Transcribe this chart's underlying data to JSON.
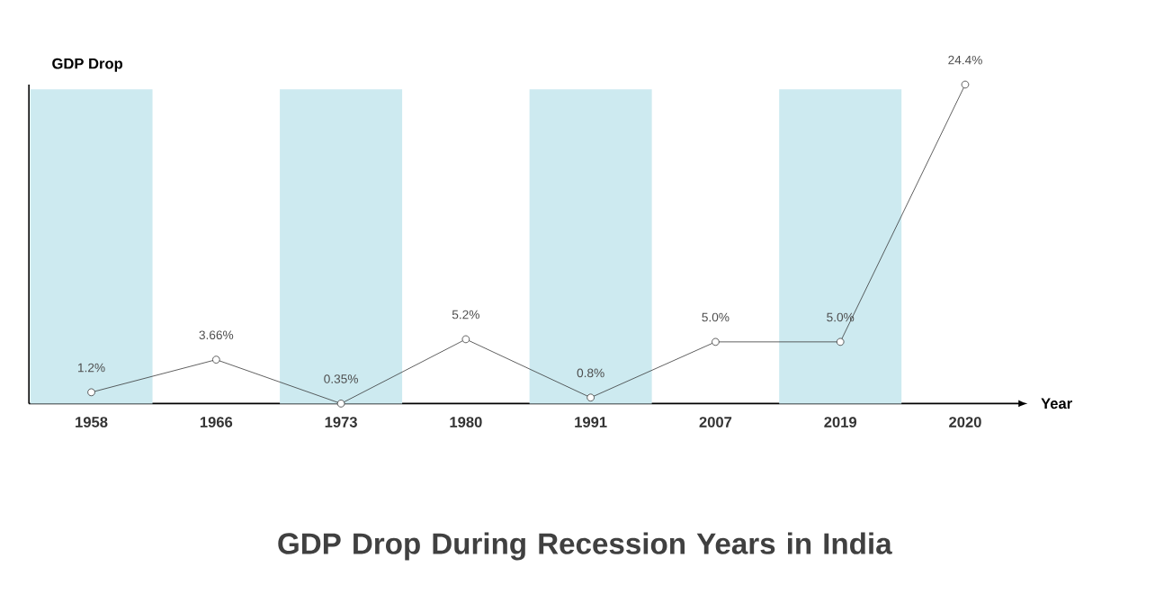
{
  "chart_data": {
    "type": "line",
    "title": "GDP Drop During Recession Years in India",
    "xlabel": "Year",
    "ylabel": "GDP Drop",
    "categories": [
      "1958",
      "1966",
      "1973",
      "1980",
      "1991",
      "2007",
      "2019",
      "2020"
    ],
    "values": [
      1.2,
      3.66,
      0.35,
      5.2,
      0.8,
      5.0,
      5.0,
      24.4
    ],
    "value_labels": [
      "1.2%",
      "3.66%",
      "0.35%",
      "5.2%",
      "0.8%",
      "5.0%",
      "5.0%",
      "24.4%"
    ],
    "color": "#333333",
    "marker": "circle",
    "line_style": "solid",
    "tick_labels": "x",
    "grid": false,
    "legend": false,
    "bands": [
      {
        "axis": "x",
        "from": "1958",
        "to": "1958",
        "color": "#cdeaf0"
      },
      {
        "axis": "x",
        "from": "1973",
        "to": "1973",
        "color": "#cdeaf0"
      },
      {
        "axis": "x",
        "from": "1991",
        "to": "1991",
        "color": "#cdeaf0"
      },
      {
        "axis": "x",
        "from": "2019",
        "to": "2019",
        "color": "#cdeaf0"
      }
    ]
  }
}
